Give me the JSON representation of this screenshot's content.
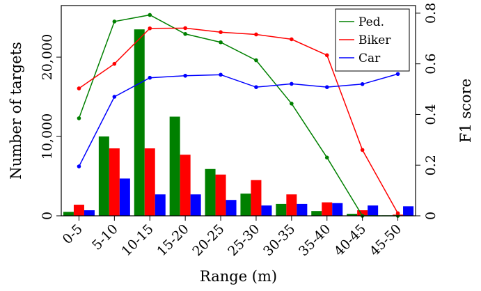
{
  "chart_data": {
    "type": "bar",
    "xlabel": "Range (m)",
    "ylabel": "Number of targets",
    "y2label": "F1 score",
    "categories": [
      "0-5",
      "5-10",
      "10-15",
      "15-20",
      "20-25",
      "25-30",
      "30-35",
      "35-40",
      "40-45",
      "45-50"
    ],
    "ylim": [
      0,
      26500
    ],
    "y2lim": [
      0,
      0.83
    ],
    "yticks": [
      0,
      10000,
      20000
    ],
    "ytick_labels": [
      "0",
      "10,000",
      "20,000"
    ],
    "y2ticks": [
      0,
      0.2,
      0.4,
      0.6,
      0.8
    ],
    "y2tick_labels": [
      "0",
      "0.2",
      "0.4",
      "0.6",
      "0.8"
    ],
    "grid": false,
    "legend_position": "top-right",
    "bar_series": [
      {
        "name": "Ped.",
        "color": "#008000",
        "values": [
          500,
          10000,
          23500,
          12500,
          5900,
          2800,
          1500,
          600,
          250,
          50
        ]
      },
      {
        "name": "Biker",
        "color": "#ff0000",
        "values": [
          1400,
          8500,
          8500,
          7700,
          5200,
          4500,
          2700,
          1700,
          700,
          150
        ]
      },
      {
        "name": "Car",
        "color": "#0000ff",
        "values": [
          700,
          4700,
          2700,
          2700,
          2000,
          1300,
          1500,
          1600,
          1300,
          1200
        ]
      }
    ],
    "line_series": [
      {
        "name": "Ped.",
        "color": "#008000",
        "values": [
          0.385,
          0.767,
          0.793,
          0.718,
          0.685,
          0.614,
          0.443,
          0.23,
          0.0,
          0.0
        ]
      },
      {
        "name": "Biker",
        "color": "#ff0000",
        "values": [
          0.503,
          0.6,
          0.74,
          0.741,
          0.725,
          0.716,
          0.697,
          0.634,
          0.26,
          0.01
        ]
      },
      {
        "name": "Car",
        "color": "#0000ff",
        "values": [
          0.195,
          0.47,
          0.545,
          0.553,
          0.557,
          0.508,
          0.521,
          0.508,
          0.52,
          0.56
        ]
      }
    ]
  }
}
